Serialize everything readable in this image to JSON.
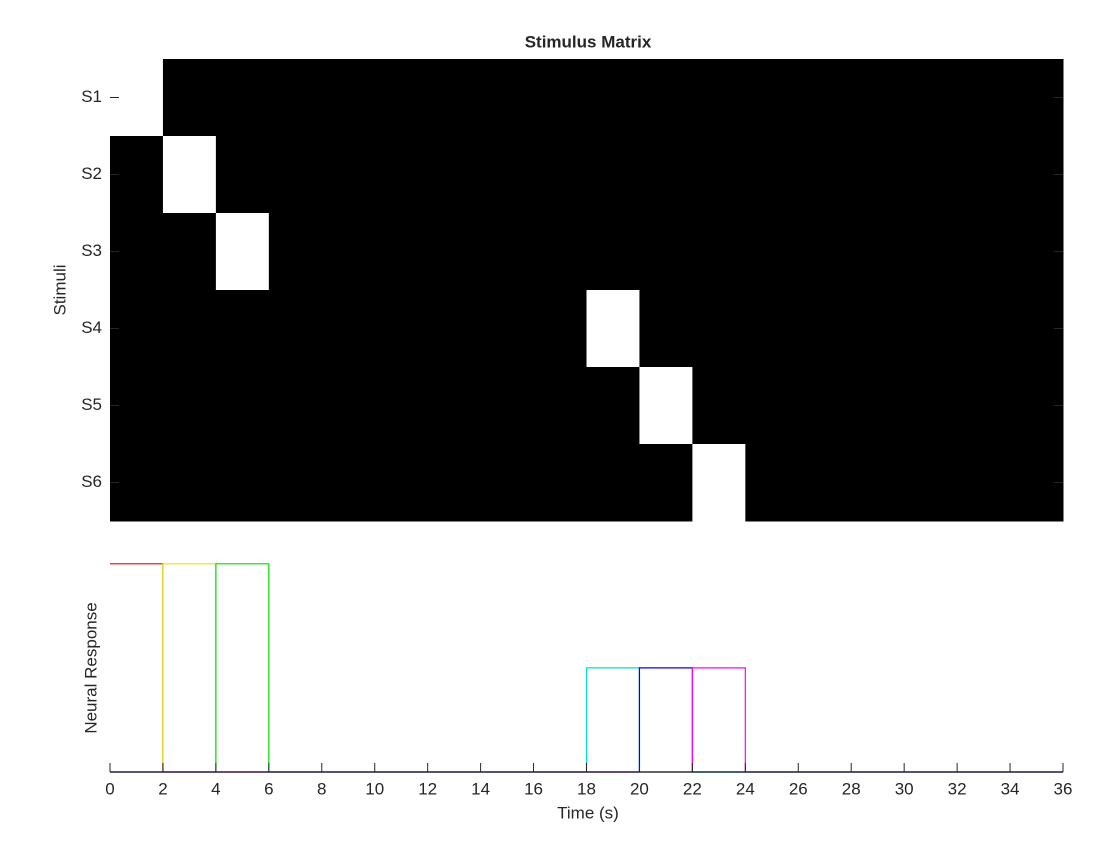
{
  "chart_data": [
    {
      "type": "heatmap",
      "title": "Stimulus Matrix",
      "ylabel": "Stimuli",
      "categories": [
        "S1",
        "S2",
        "S3",
        "S4",
        "S5",
        "S6"
      ],
      "colormap": [
        "#000000",
        "#ffffff"
      ],
      "values": [
        [
          1,
          0,
          0,
          0,
          0,
          0,
          0,
          0,
          0,
          0,
          0,
          0,
          0,
          0,
          0,
          0,
          0,
          0
        ],
        [
          0,
          1,
          0,
          0,
          0,
          0,
          0,
          0,
          0,
          0,
          0,
          0,
          0,
          0,
          0,
          0,
          0,
          0
        ],
        [
          0,
          0,
          1,
          0,
          0,
          0,
          0,
          0,
          0,
          0,
          0,
          0,
          0,
          0,
          0,
          0,
          0,
          0
        ],
        [
          0,
          0,
          0,
          0,
          0,
          0,
          0,
          0,
          0,
          1,
          0,
          0,
          0,
          0,
          0,
          0,
          0,
          0
        ],
        [
          0,
          0,
          0,
          0,
          0,
          0,
          0,
          0,
          0,
          0,
          1,
          0,
          0,
          0,
          0,
          0,
          0,
          0
        ],
        [
          0,
          0,
          0,
          0,
          0,
          0,
          0,
          0,
          0,
          0,
          0,
          1,
          0,
          0,
          0,
          0,
          0,
          0
        ]
      ]
    },
    {
      "type": "line",
      "xlabel": "Time (s)",
      "ylabel": "Neural Response",
      "x": [
        0,
        2,
        2,
        4,
        4,
        6,
        6,
        18,
        18,
        20,
        20,
        22,
        22,
        24,
        24,
        36
      ],
      "series": [
        {
          "color": "#ff0000",
          "values": [
            1,
            1,
            0,
            0,
            0,
            0,
            0,
            0,
            0,
            0,
            0,
            0,
            0,
            0,
            0,
            0
          ]
        },
        {
          "color": "#e6e600",
          "values": [
            0,
            0,
            1,
            1,
            0,
            0,
            0,
            0,
            0,
            0,
            0,
            0,
            0,
            0,
            0,
            0
          ]
        },
        {
          "color": "#00dd00",
          "values": [
            0,
            0,
            0,
            0,
            1,
            1,
            0,
            0,
            0,
            0,
            0,
            0,
            0,
            0,
            0,
            0
          ]
        },
        {
          "color": "#00dddd",
          "values": [
            0,
            0,
            0,
            0,
            0,
            0,
            0,
            0,
            0.5,
            0.5,
            0,
            0,
            0,
            0,
            0,
            0
          ]
        },
        {
          "color": "#0000ff",
          "values": [
            0,
            0,
            0,
            0,
            0,
            0,
            0,
            0,
            0,
            0,
            0.5,
            0.5,
            0,
            0,
            0,
            0
          ]
        },
        {
          "color": "#ff00ff",
          "values": [
            0,
            0,
            0,
            0,
            0,
            0,
            0,
            0,
            0,
            0,
            0,
            0,
            0.5,
            0.5,
            0,
            0
          ]
        }
      ],
      "xlim": [
        0,
        36
      ],
      "ylim": [
        0,
        1.1
      ],
      "xticks": [
        0,
        2,
        4,
        6,
        8,
        10,
        12,
        14,
        16,
        18,
        20,
        22,
        24,
        26,
        28,
        30,
        32,
        34,
        36
      ]
    }
  ]
}
